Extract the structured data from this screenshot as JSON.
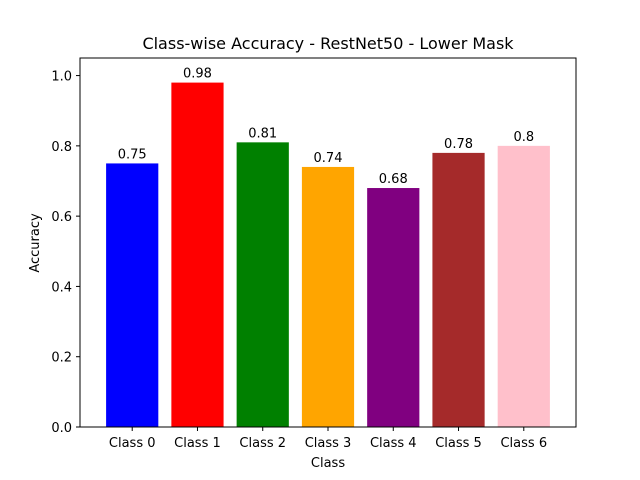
{
  "chart_data": {
    "type": "bar",
    "title": "Class-wise Accuracy - RestNet50 - Lower Mask",
    "xlabel": "Class",
    "ylabel": "Accuracy",
    "categories": [
      "Class 0",
      "Class 1",
      "Class 2",
      "Class 3",
      "Class 4",
      "Class 5",
      "Class 6"
    ],
    "values": [
      0.75,
      0.98,
      0.81,
      0.74,
      0.68,
      0.78,
      0.8
    ],
    "data_labels": [
      "0.75",
      "0.98",
      "0.81",
      "0.74",
      "0.68",
      "0.78",
      "0.8"
    ],
    "colors": [
      "#0000ff",
      "#ff0000",
      "#008000",
      "#ffa500",
      "#800080",
      "#a52a2a",
      "#ffc0cb"
    ],
    "ylim": [
      0,
      1.05
    ],
    "yticks": [
      0.0,
      0.2,
      0.4,
      0.6,
      0.8,
      1.0
    ],
    "ytick_labels": [
      "0.0",
      "0.2",
      "0.4",
      "0.6",
      "0.8",
      "1.0"
    ],
    "grid": false,
    "legend": "none"
  }
}
